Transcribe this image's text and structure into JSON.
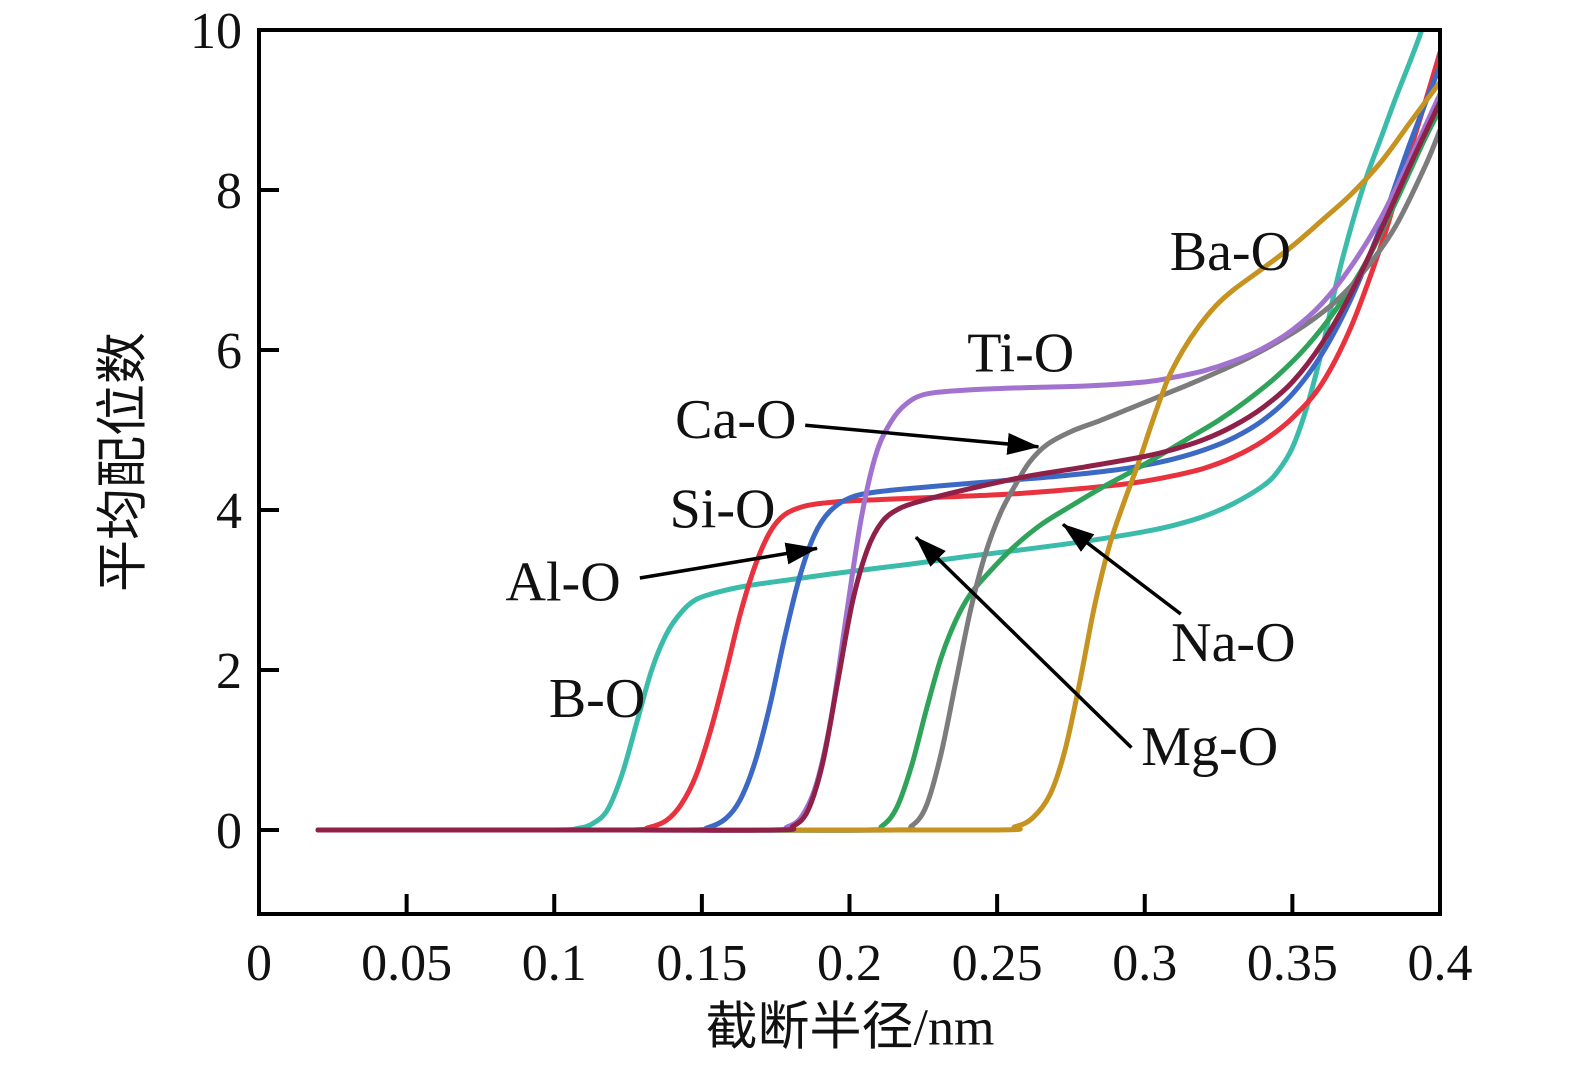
{
  "figure": {
    "background": "#ffffff",
    "axis_color": "#000000",
    "text_color": "#111111"
  },
  "chart_data": {
    "type": "line",
    "title": "",
    "xlabel": "截断半径/nm",
    "ylabel": "平均配位数",
    "xlim": [
      0,
      0.4
    ],
    "ylim": [
      -1.05,
      10
    ],
    "grid": false,
    "legend_position": "none (inline annotations)",
    "x_ticks": [
      {
        "v": 0,
        "label": "0"
      },
      {
        "v": 0.05,
        "label": "0.05"
      },
      {
        "v": 0.1,
        "label": "0.1"
      },
      {
        "v": 0.15,
        "label": "0.15"
      },
      {
        "v": 0.2,
        "label": "0.2"
      },
      {
        "v": 0.25,
        "label": "0.25"
      },
      {
        "v": 0.3,
        "label": "0.3"
      },
      {
        "v": 0.35,
        "label": "0.35"
      },
      {
        "v": 0.4,
        "label": "0.4"
      }
    ],
    "y_ticks": [
      {
        "v": 0,
        "label": "0"
      },
      {
        "v": 2,
        "label": "2"
      },
      {
        "v": 4,
        "label": "4"
      },
      {
        "v": 6,
        "label": "6"
      },
      {
        "v": 8,
        "label": "8"
      },
      {
        "v": 10,
        "label": "10"
      }
    ],
    "series": [
      {
        "name": "B-O",
        "color": "#3bbcab",
        "points": [
          [
            0.02,
            0
          ],
          [
            0.06,
            0
          ],
          [
            0.1,
            0
          ],
          [
            0.108,
            0.02
          ],
          [
            0.113,
            0.08
          ],
          [
            0.118,
            0.25
          ],
          [
            0.123,
            0.7
          ],
          [
            0.128,
            1.35
          ],
          [
            0.133,
            2.0
          ],
          [
            0.138,
            2.45
          ],
          [
            0.143,
            2.72
          ],
          [
            0.148,
            2.88
          ],
          [
            0.155,
            2.97
          ],
          [
            0.165,
            3.05
          ],
          [
            0.18,
            3.13
          ],
          [
            0.2,
            3.23
          ],
          [
            0.22,
            3.32
          ],
          [
            0.24,
            3.42
          ],
          [
            0.26,
            3.51
          ],
          [
            0.28,
            3.61
          ],
          [
            0.3,
            3.73
          ],
          [
            0.31,
            3.81
          ],
          [
            0.32,
            3.92
          ],
          [
            0.33,
            4.08
          ],
          [
            0.34,
            4.3
          ],
          [
            0.345,
            4.48
          ],
          [
            0.35,
            4.78
          ],
          [
            0.355,
            5.3
          ],
          [
            0.36,
            6.0
          ],
          [
            0.365,
            6.85
          ],
          [
            0.37,
            7.55
          ],
          [
            0.375,
            8.15
          ],
          [
            0.38,
            8.65
          ],
          [
            0.385,
            9.15
          ],
          [
            0.39,
            9.62
          ],
          [
            0.394,
            10.02
          ],
          [
            0.397,
            10.4
          ]
        ]
      },
      {
        "name": "Si-O",
        "color": "#e8323e",
        "points": [
          [
            0.02,
            0
          ],
          [
            0.08,
            0
          ],
          [
            0.125,
            0
          ],
          [
            0.132,
            0.03
          ],
          [
            0.138,
            0.12
          ],
          [
            0.143,
            0.32
          ],
          [
            0.148,
            0.68
          ],
          [
            0.153,
            1.25
          ],
          [
            0.158,
            1.95
          ],
          [
            0.163,
            2.7
          ],
          [
            0.168,
            3.3
          ],
          [
            0.173,
            3.72
          ],
          [
            0.178,
            3.94
          ],
          [
            0.185,
            4.05
          ],
          [
            0.195,
            4.1
          ],
          [
            0.21,
            4.13
          ],
          [
            0.23,
            4.16
          ],
          [
            0.25,
            4.19
          ],
          [
            0.27,
            4.24
          ],
          [
            0.29,
            4.31
          ],
          [
            0.3,
            4.36
          ],
          [
            0.31,
            4.43
          ],
          [
            0.32,
            4.52
          ],
          [
            0.33,
            4.66
          ],
          [
            0.34,
            4.86
          ],
          [
            0.35,
            5.15
          ],
          [
            0.36,
            5.58
          ],
          [
            0.37,
            6.3
          ],
          [
            0.38,
            7.3
          ],
          [
            0.385,
            7.9
          ],
          [
            0.39,
            8.5
          ],
          [
            0.395,
            9.1
          ],
          [
            0.4,
            9.72
          ]
        ]
      },
      {
        "name": "Al-O",
        "color": "#3c69c4",
        "points": [
          [
            0.02,
            0
          ],
          [
            0.1,
            0
          ],
          [
            0.145,
            0
          ],
          [
            0.152,
            0.03
          ],
          [
            0.158,
            0.14
          ],
          [
            0.163,
            0.38
          ],
          [
            0.168,
            0.85
          ],
          [
            0.173,
            1.55
          ],
          [
            0.178,
            2.4
          ],
          [
            0.183,
            3.15
          ],
          [
            0.188,
            3.68
          ],
          [
            0.193,
            3.97
          ],
          [
            0.2,
            4.15
          ],
          [
            0.21,
            4.23
          ],
          [
            0.23,
            4.3
          ],
          [
            0.25,
            4.36
          ],
          [
            0.27,
            4.42
          ],
          [
            0.29,
            4.5
          ],
          [
            0.3,
            4.56
          ],
          [
            0.31,
            4.64
          ],
          [
            0.32,
            4.75
          ],
          [
            0.33,
            4.9
          ],
          [
            0.34,
            5.12
          ],
          [
            0.35,
            5.45
          ],
          [
            0.36,
            5.95
          ],
          [
            0.37,
            6.65
          ],
          [
            0.38,
            7.55
          ],
          [
            0.39,
            8.6
          ],
          [
            0.4,
            9.55
          ]
        ]
      },
      {
        "name": "Na-O",
        "color": "#2fa35a",
        "points": [
          [
            0.02,
            0
          ],
          [
            0.15,
            0
          ],
          [
            0.205,
            0
          ],
          [
            0.211,
            0.05
          ],
          [
            0.216,
            0.28
          ],
          [
            0.221,
            0.8
          ],
          [
            0.226,
            1.5
          ],
          [
            0.231,
            2.15
          ],
          [
            0.236,
            2.62
          ],
          [
            0.241,
            2.95
          ],
          [
            0.248,
            3.25
          ],
          [
            0.256,
            3.55
          ],
          [
            0.265,
            3.82
          ],
          [
            0.275,
            4.05
          ],
          [
            0.285,
            4.27
          ],
          [
            0.295,
            4.47
          ],
          [
            0.305,
            4.68
          ],
          [
            0.315,
            4.9
          ],
          [
            0.325,
            5.12
          ],
          [
            0.335,
            5.38
          ],
          [
            0.345,
            5.68
          ],
          [
            0.355,
            6.05
          ],
          [
            0.365,
            6.52
          ],
          [
            0.375,
            7.1
          ],
          [
            0.385,
            7.85
          ],
          [
            0.395,
            8.65
          ],
          [
            0.4,
            9.0
          ]
        ]
      },
      {
        "name": "Ca-O",
        "color": "#7c7c7c",
        "points": [
          [
            0.02,
            0
          ],
          [
            0.15,
            0
          ],
          [
            0.215,
            0
          ],
          [
            0.221,
            0.05
          ],
          [
            0.226,
            0.3
          ],
          [
            0.231,
            0.95
          ],
          [
            0.236,
            1.85
          ],
          [
            0.241,
            2.75
          ],
          [
            0.246,
            3.45
          ],
          [
            0.251,
            3.95
          ],
          [
            0.256,
            4.3
          ],
          [
            0.261,
            4.6
          ],
          [
            0.267,
            4.82
          ],
          [
            0.275,
            4.98
          ],
          [
            0.285,
            5.12
          ],
          [
            0.295,
            5.27
          ],
          [
            0.305,
            5.42
          ],
          [
            0.315,
            5.57
          ],
          [
            0.325,
            5.73
          ],
          [
            0.335,
            5.9
          ],
          [
            0.345,
            6.1
          ],
          [
            0.355,
            6.33
          ],
          [
            0.365,
            6.62
          ],
          [
            0.375,
            7.02
          ],
          [
            0.385,
            7.55
          ],
          [
            0.395,
            8.3
          ],
          [
            0.4,
            8.75
          ]
        ]
      },
      {
        "name": "Ti-O",
        "color": "#a173ce",
        "points": [
          [
            0.02,
            0
          ],
          [
            0.12,
            0
          ],
          [
            0.172,
            0
          ],
          [
            0.179,
            0.04
          ],
          [
            0.184,
            0.18
          ],
          [
            0.189,
            0.6
          ],
          [
            0.194,
            1.45
          ],
          [
            0.199,
            2.7
          ],
          [
            0.204,
            3.9
          ],
          [
            0.209,
            4.7
          ],
          [
            0.214,
            5.1
          ],
          [
            0.219,
            5.32
          ],
          [
            0.226,
            5.45
          ],
          [
            0.24,
            5.5
          ],
          [
            0.26,
            5.53
          ],
          [
            0.28,
            5.55
          ],
          [
            0.3,
            5.6
          ],
          [
            0.31,
            5.66
          ],
          [
            0.32,
            5.74
          ],
          [
            0.33,
            5.86
          ],
          [
            0.34,
            6.02
          ],
          [
            0.35,
            6.25
          ],
          [
            0.36,
            6.58
          ],
          [
            0.37,
            7.05
          ],
          [
            0.38,
            7.65
          ],
          [
            0.39,
            8.4
          ],
          [
            0.4,
            9.2
          ]
        ]
      },
      {
        "name": "Ba-O",
        "color": "#c79320",
        "points": [
          [
            0.02,
            0
          ],
          [
            0.15,
            0
          ],
          [
            0.248,
            0
          ],
          [
            0.256,
            0.04
          ],
          [
            0.262,
            0.15
          ],
          [
            0.268,
            0.45
          ],
          [
            0.273,
            1.0
          ],
          [
            0.278,
            1.85
          ],
          [
            0.283,
            2.8
          ],
          [
            0.288,
            3.55
          ],
          [
            0.293,
            4.1
          ],
          [
            0.298,
            4.6
          ],
          [
            0.303,
            5.15
          ],
          [
            0.308,
            5.65
          ],
          [
            0.313,
            6.0
          ],
          [
            0.318,
            6.28
          ],
          [
            0.324,
            6.55
          ],
          [
            0.33,
            6.75
          ],
          [
            0.34,
            7.02
          ],
          [
            0.35,
            7.3
          ],
          [
            0.36,
            7.62
          ],
          [
            0.37,
            7.95
          ],
          [
            0.38,
            8.35
          ],
          [
            0.39,
            8.85
          ],
          [
            0.4,
            9.35
          ]
        ]
      },
      {
        "name": "Mg-O",
        "color": "#8f2048",
        "points": [
          [
            0.02,
            0
          ],
          [
            0.12,
            0
          ],
          [
            0.175,
            0
          ],
          [
            0.181,
            0.05
          ],
          [
            0.186,
            0.25
          ],
          [
            0.191,
            0.85
          ],
          [
            0.196,
            1.85
          ],
          [
            0.201,
            2.85
          ],
          [
            0.206,
            3.5
          ],
          [
            0.211,
            3.85
          ],
          [
            0.217,
            4.02
          ],
          [
            0.225,
            4.12
          ],
          [
            0.24,
            4.26
          ],
          [
            0.26,
            4.42
          ],
          [
            0.28,
            4.54
          ],
          [
            0.3,
            4.67
          ],
          [
            0.31,
            4.76
          ],
          [
            0.32,
            4.88
          ],
          [
            0.33,
            5.05
          ],
          [
            0.34,
            5.28
          ],
          [
            0.35,
            5.6
          ],
          [
            0.36,
            6.08
          ],
          [
            0.37,
            6.72
          ],
          [
            0.38,
            7.5
          ],
          [
            0.39,
            8.32
          ],
          [
            0.4,
            9.1
          ]
        ]
      }
    ],
    "annotations": [
      {
        "label": "B-O",
        "x": 0.1145,
        "y": 1.66
      },
      {
        "label": "Al-O",
        "x": 0.103,
        "y": 3.12,
        "arrow": {
          "x1": 0.129,
          "y1": 3.15,
          "x2": 0.189,
          "y2": 3.52
        }
      },
      {
        "label": "Si-O",
        "x": 0.157,
        "y": 4.03
      },
      {
        "label": "Ca-O",
        "x": 0.1615,
        "y": 5.15,
        "arrow": {
          "x1": 0.185,
          "y1": 5.06,
          "x2": 0.264,
          "y2": 4.79
        }
      },
      {
        "label": "Ti-O",
        "x": 0.258,
        "y": 5.98
      },
      {
        "label": "Ba-O",
        "x": 0.329,
        "y": 7.25
      },
      {
        "label": "Na-O",
        "x": 0.33,
        "y": 2.36,
        "arrow": {
          "x1": 0.3122,
          "y1": 2.7,
          "x2": 0.2723,
          "y2": 3.82
        }
      },
      {
        "label": "Mg-O",
        "x": 0.322,
        "y": 1.06,
        "arrow": {
          "x1": 0.2955,
          "y1": 1.03,
          "x2": 0.2225,
          "y2": 3.66
        }
      }
    ]
  }
}
